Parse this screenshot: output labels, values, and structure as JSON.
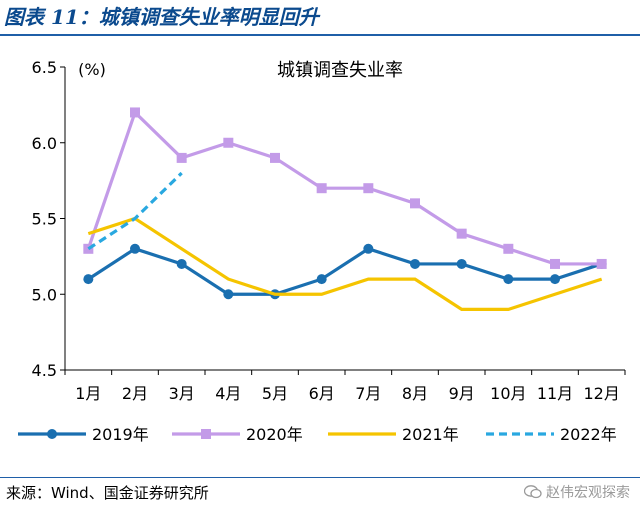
{
  "figure_title": "图表 11：城镇调查失业率明显回升",
  "source_text": "来源：Wind、国金证券研究所",
  "watermark_text": "赵伟宏观探索",
  "chart_data": {
    "type": "line",
    "title": "城镇调查失业率",
    "ylabel": "(%)",
    "categories": [
      "1月",
      "2月",
      "3月",
      "4月",
      "5月",
      "6月",
      "7月",
      "8月",
      "9月",
      "10月",
      "11月",
      "12月"
    ],
    "ylim": [
      4.5,
      6.5
    ],
    "yticks": [
      "4.5",
      "5.0",
      "5.5",
      "6.0",
      "6.5"
    ],
    "grid": false,
    "legend_position": "bottom",
    "series": [
      {
        "name": "2019年",
        "color": "#1a6fb0",
        "style": "solid",
        "marker": "circle",
        "values": [
          5.1,
          5.3,
          5.2,
          5.0,
          5.0,
          5.1,
          5.3,
          5.2,
          5.2,
          5.1,
          5.1,
          5.2
        ]
      },
      {
        "name": "2020年",
        "color": "#c39be8",
        "style": "solid",
        "marker": "square",
        "values": [
          5.3,
          6.2,
          5.9,
          6.0,
          5.9,
          5.7,
          5.7,
          5.6,
          5.4,
          5.3,
          5.2,
          5.2
        ]
      },
      {
        "name": "2021年",
        "color": "#f5c400",
        "style": "solid",
        "marker": "none",
        "values": [
          5.4,
          5.5,
          5.3,
          5.1,
          5.0,
          5.0,
          5.1,
          5.1,
          4.9,
          4.9,
          5.0,
          5.1
        ]
      },
      {
        "name": "2022年",
        "color": "#29a8e0",
        "style": "dashed",
        "marker": "none",
        "values": [
          5.3,
          5.5,
          5.8,
          null,
          null,
          null,
          null,
          null,
          null,
          null,
          null,
          null
        ]
      }
    ]
  }
}
